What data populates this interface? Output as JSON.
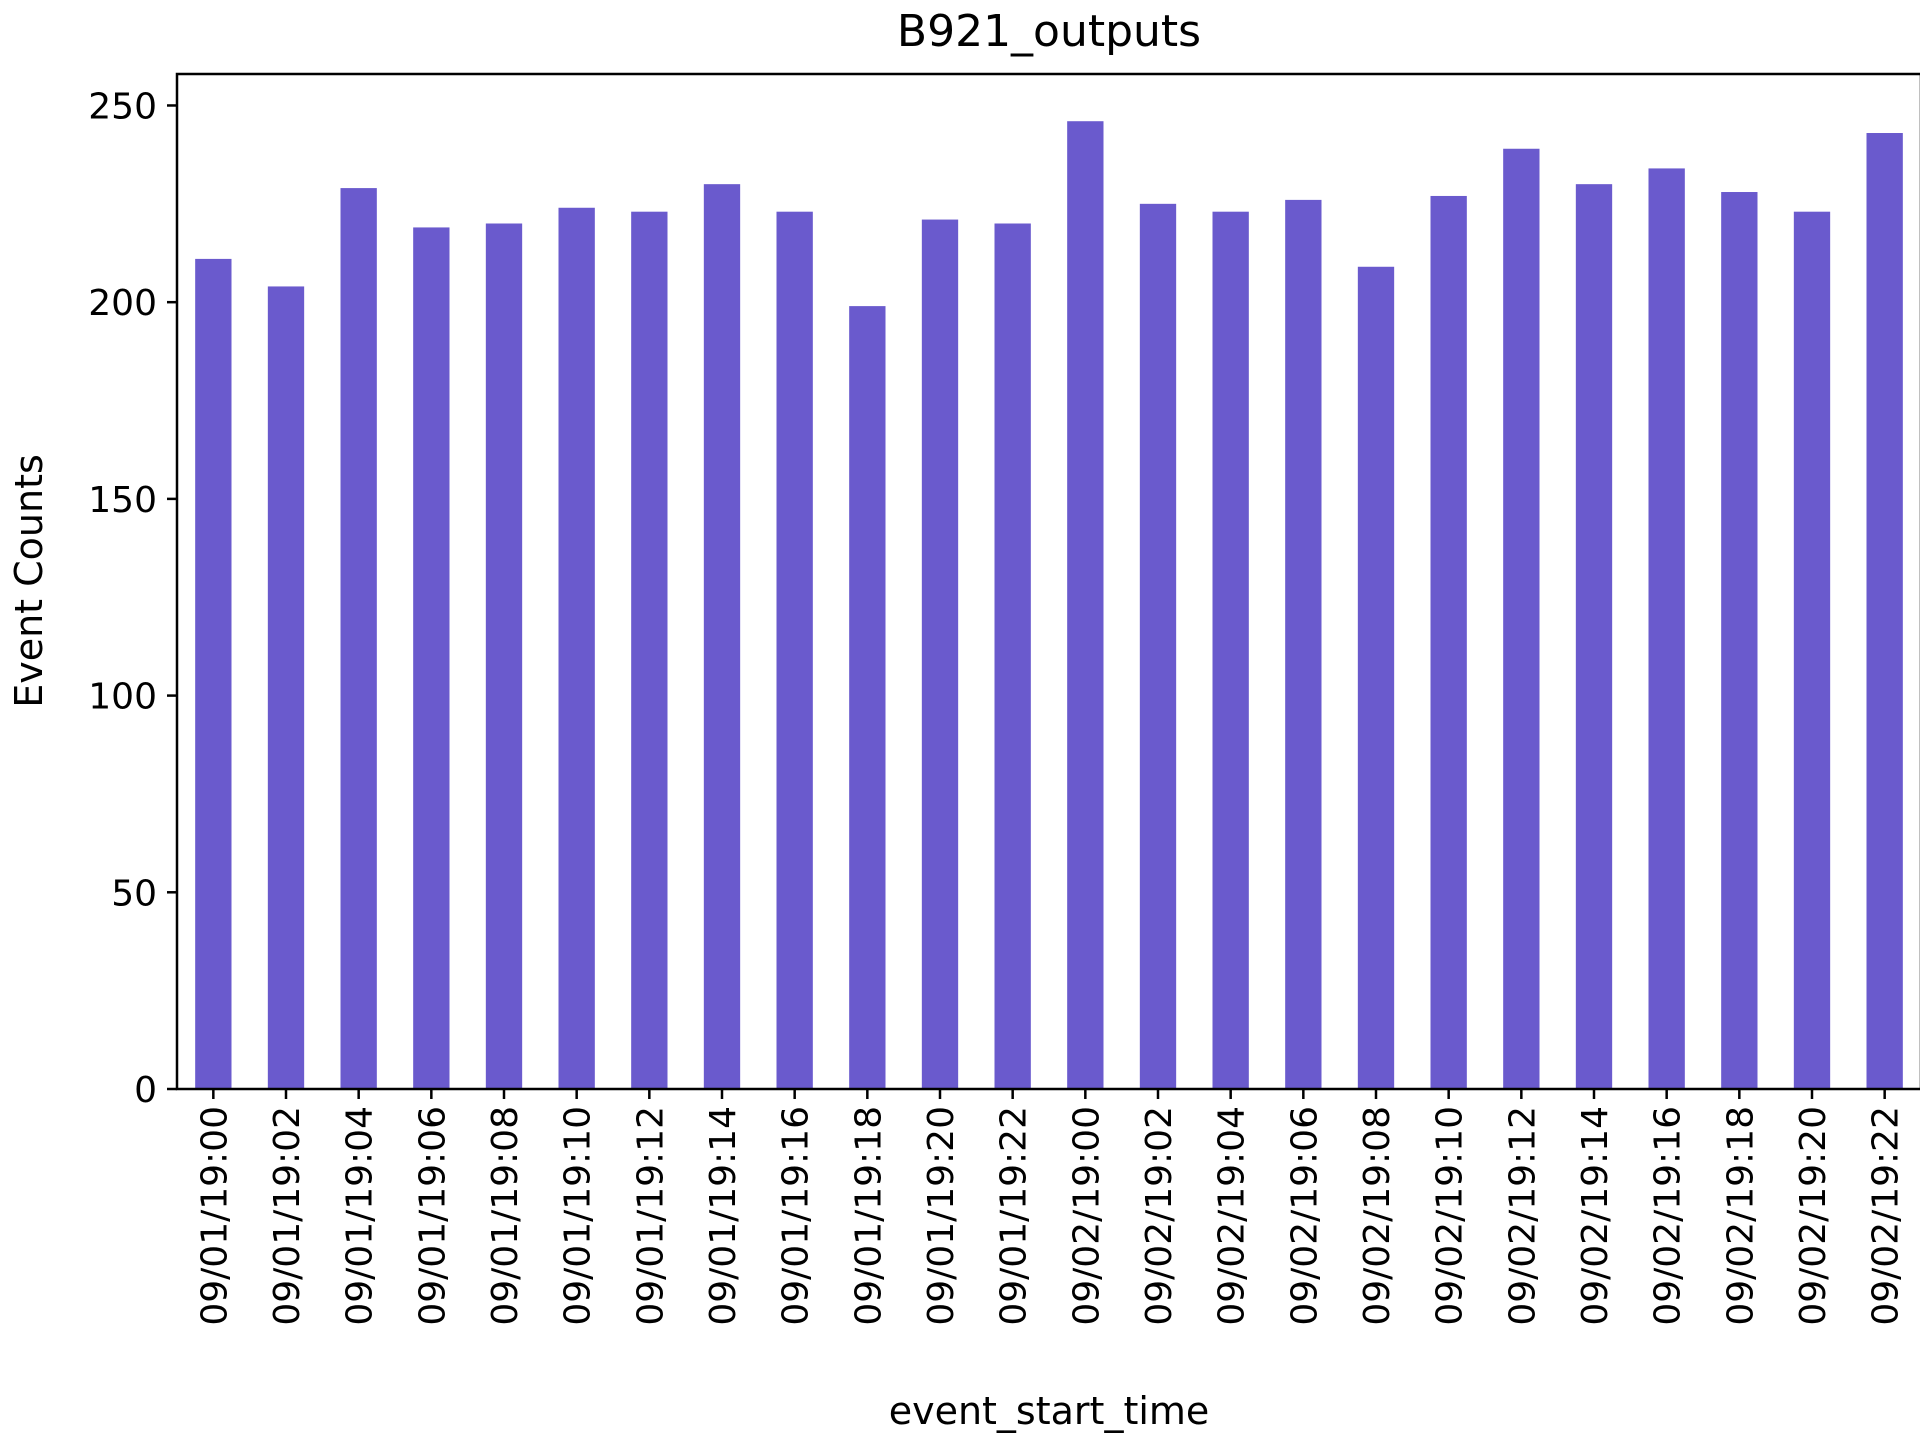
{
  "colors": {
    "bar": "#6a5acd",
    "axis": "#000000",
    "background": "#ffffff"
  },
  "chart_data": {
    "type": "bar",
    "title": "B921_outputs",
    "xlabel": "event_start_time",
    "ylabel": "Event Counts",
    "ylim": [
      0,
      258
    ],
    "yticks": [
      0,
      50,
      100,
      150,
      200,
      250
    ],
    "grid": false,
    "legend": "none",
    "categories": [
      "09/01/19:00",
      "09/01/19:02",
      "09/01/19:04",
      "09/01/19:06",
      "09/01/19:08",
      "09/01/19:10",
      "09/01/19:12",
      "09/01/19:14",
      "09/01/19:16",
      "09/01/19:18",
      "09/01/19:20",
      "09/01/19:22",
      "09/02/19:00",
      "09/02/19:02",
      "09/02/19:04",
      "09/02/19:06",
      "09/02/19:08",
      "09/02/19:10",
      "09/02/19:12",
      "09/02/19:14",
      "09/02/19:16",
      "09/02/19:18",
      "09/02/19:20",
      "09/02/19:22"
    ],
    "values": [
      211,
      204,
      229,
      219,
      220,
      224,
      223,
      230,
      223,
      199,
      221,
      220,
      246,
      225,
      223,
      226,
      209,
      227,
      239,
      230,
      234,
      228,
      223,
      243
    ]
  }
}
